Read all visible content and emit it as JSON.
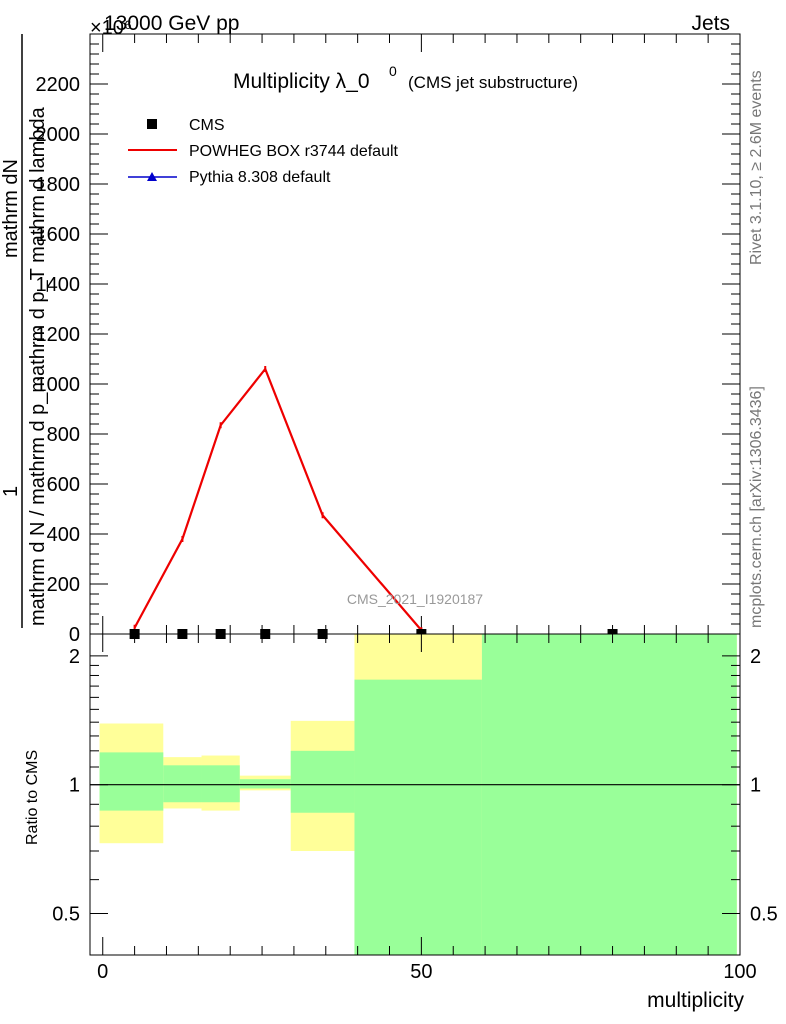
{
  "header": {
    "energy": "13000 GeV pp",
    "process": "Jets",
    "exponent": "×10⁶"
  },
  "side_labels": {
    "rivet": "Rivet 3.1.10, ≥ 2.6M events",
    "mcplots": "mcplots.cern.ch [arXiv:1306.3436]"
  },
  "chart_data": [
    {
      "type": "line",
      "title": "Multiplicity λ_0",
      "title_superscript": "0",
      "subtitle": "(CMS jet substructure)",
      "ylabel_numerator": "1",
      "ylabel_numerator_2": "mathrm dN",
      "ylabel_denominator": "mathrm d N / mathrm d p_mathrm d p_T mathrm d lambda",
      "watermark": "CMS_2021_I1920187",
      "xlim": [
        -2,
        100
      ],
      "ylim": [
        0,
        2400
      ],
      "y_scale_exponent": 6,
      "yticks": [
        0,
        200,
        400,
        600,
        800,
        1000,
        1200,
        1400,
        1600,
        1800,
        2000,
        2200
      ],
      "ytick_labels": [
        "0",
        "200",
        "400",
        "600",
        "800",
        "1000",
        "1200",
        "1400",
        "1600",
        "1800",
        "2000",
        "2200"
      ],
      "legend_position": "top-left",
      "series": [
        {
          "name": "CMS",
          "kind": "data",
          "color": "#000000",
          "x": [
            5,
            12.5,
            18.5,
            25.5,
            34.5,
            50,
            80
          ],
          "y": [
            0,
            0,
            0,
            0,
            0,
            0,
            0
          ]
        },
        {
          "name": "POWHEG BOX r3744 default",
          "kind": "line",
          "color": "#ee0000",
          "x": [
            5,
            12.5,
            18.5,
            25.5,
            34.5,
            50
          ],
          "y": [
            25,
            380,
            835,
            1060,
            475,
            15
          ]
        },
        {
          "name": "Pythia 8.308 default",
          "kind": "line",
          "color": "#0000cc",
          "x": [],
          "y": []
        }
      ]
    },
    {
      "type": "area",
      "ylabel": "Ratio to CMS",
      "xlabel": "multiplicity",
      "xlim": [
        -2,
        100
      ],
      "ylim": [
        0.4,
        2.25
      ],
      "xticks": [
        0,
        50,
        100
      ],
      "xtick_labels": [
        "0",
        "50",
        "100"
      ],
      "yticks": [
        0.5,
        1,
        2
      ],
      "ytick_labels": [
        "0.5",
        "1",
        "2"
      ],
      "reference_line": 1,
      "bins": [
        {
          "x0": -0.5,
          "x1": 9.5,
          "yellow": [
            0.73,
            1.39
          ],
          "green": [
            0.87,
            1.19
          ]
        },
        {
          "x0": 9.5,
          "x1": 15.5,
          "yellow": [
            0.88,
            1.16
          ],
          "green": [
            0.91,
            1.11
          ]
        },
        {
          "x0": 15.5,
          "x1": 21.5,
          "yellow": [
            0.87,
            1.17
          ],
          "green": [
            0.91,
            1.11
          ]
        },
        {
          "x0": 21.5,
          "x1": 29.5,
          "yellow": [
            0.97,
            1.05
          ],
          "green": [
            0.98,
            1.03
          ]
        },
        {
          "x0": 29.5,
          "x1": 39.5,
          "yellow": [
            0.7,
            1.41
          ],
          "green": [
            0.86,
            1.2
          ]
        },
        {
          "x0": 39.5,
          "x1": 59.5,
          "yellow": [
            0.4,
            2.25
          ],
          "green": [
            0.4,
            1.76
          ]
        },
        {
          "x0": 59.5,
          "x1": 99.5,
          "yellow": [
            0.4,
            2.25
          ],
          "green": [
            0.4,
            2.25
          ]
        }
      ]
    }
  ]
}
